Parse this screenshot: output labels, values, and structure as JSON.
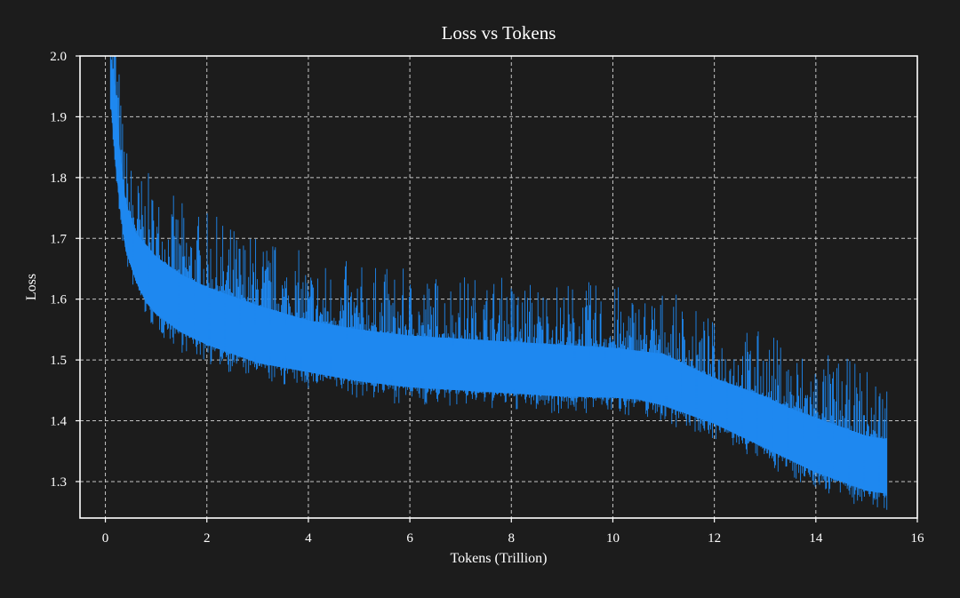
{
  "chart_data": {
    "type": "line",
    "title": "Loss vs Tokens",
    "xlabel": "Tokens (Trillion)",
    "ylabel": "Loss",
    "xlim": [
      -0.5,
      16
    ],
    "ylim": [
      1.24,
      2.0
    ],
    "xticks": [
      "0",
      "2",
      "4",
      "6",
      "8",
      "10",
      "12",
      "14",
      "16"
    ],
    "yticks": [
      "1.3",
      "1.4",
      "1.5",
      "1.6",
      "1.7",
      "1.8",
      "1.9",
      "2.0"
    ],
    "grid": true,
    "legend": "none",
    "series": [
      {
        "color": "#1e88f0",
        "x": [
          0.1,
          0.2,
          0.3,
          0.4,
          0.6,
          0.8,
          1.0,
          1.5,
          2.0,
          3.0,
          4.0,
          5.0,
          6.0,
          7.0,
          8.0,
          9.0,
          10.0,
          10.5,
          11.0,
          11.5,
          12.0,
          12.5,
          13.0,
          13.5,
          14.0,
          14.5,
          15.0,
          15.4
        ],
        "upper": [
          2.0,
          1.95,
          1.83,
          1.76,
          1.71,
          1.69,
          1.67,
          1.64,
          1.62,
          1.59,
          1.565,
          1.55,
          1.54,
          1.535,
          1.53,
          1.525,
          1.52,
          1.515,
          1.51,
          1.49,
          1.47,
          1.455,
          1.44,
          1.42,
          1.405,
          1.39,
          1.375,
          1.37
        ],
        "lower": [
          1.93,
          1.82,
          1.74,
          1.68,
          1.63,
          1.595,
          1.575,
          1.545,
          1.525,
          1.495,
          1.48,
          1.465,
          1.455,
          1.45,
          1.445,
          1.44,
          1.438,
          1.435,
          1.425,
          1.41,
          1.395,
          1.375,
          1.355,
          1.335,
          1.315,
          1.3,
          1.285,
          1.28
        ]
      }
    ]
  }
}
